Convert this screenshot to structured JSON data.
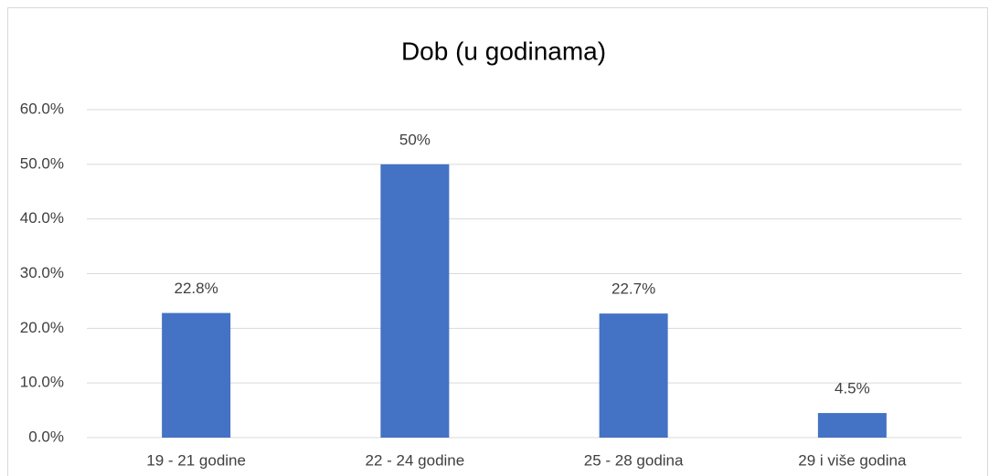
{
  "chart_data": {
    "type": "bar",
    "title": "Dob (u godinama)",
    "categories": [
      "19 - 21 godine",
      "22 - 24 godine",
      "25 - 28 godina",
      "29 i više godina"
    ],
    "values": [
      22.8,
      50,
      22.7,
      4.5
    ],
    "value_labels": [
      "22.8%",
      "50%",
      "22.7%",
      "4.5%"
    ],
    "color": "#4472c4",
    "ylim": [
      0,
      60
    ],
    "yticks": [
      {
        "value": 0,
        "label": "0.0%"
      },
      {
        "value": 10,
        "label": "10.0%"
      },
      {
        "value": 20,
        "label": "20.0%"
      },
      {
        "value": 30,
        "label": "30.0%"
      },
      {
        "value": 40,
        "label": "40.0%"
      },
      {
        "value": 50,
        "label": "50.0%"
      },
      {
        "value": 60,
        "label": "60.0%"
      }
    ],
    "grid": true
  }
}
